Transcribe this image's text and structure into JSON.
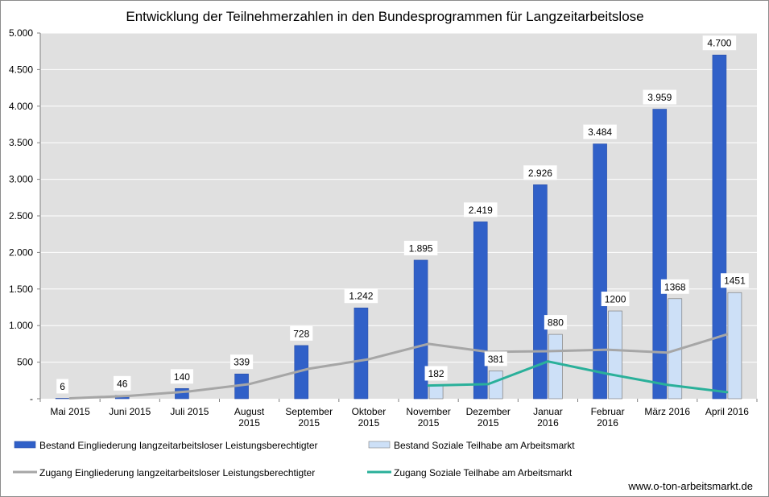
{
  "chart_data": {
    "type": "bar",
    "title": "Entwicklung der Teilnehmerzahlen in den Bundesprogrammen für Langzeitarbeitslose",
    "categories": [
      [
        "Mai 2015"
      ],
      [
        "Juni 2015"
      ],
      [
        "Juli 2015"
      ],
      [
        "August",
        "2015"
      ],
      [
        "September",
        "2015"
      ],
      [
        "Oktober",
        "2015"
      ],
      [
        "November",
        "2015"
      ],
      [
        "Dezember",
        "2015"
      ],
      [
        "Januar",
        "2016"
      ],
      [
        "Februar",
        "2016"
      ],
      [
        "März 2016"
      ],
      [
        "April 2016"
      ]
    ],
    "ylim": [
      0,
      5000
    ],
    "yticks": [
      0,
      500,
      1000,
      1500,
      2000,
      2500,
      3000,
      3500,
      4000,
      4500,
      5000
    ],
    "ytick_labels": [
      "-",
      "500",
      "1.000",
      "1.500",
      "2.000",
      "2.500",
      "3.000",
      "3.500",
      "4.000",
      "4.500",
      "5.000"
    ],
    "grid": true,
    "legend_position": "bottom",
    "series": [
      {
        "name": "Bestand Eingliederung langzeitarbeitsloser Leistungsberechtigter",
        "kind": "bar",
        "color": "#3060c8",
        "values": [
          6,
          46,
          140,
          339,
          728,
          1242,
          1895,
          2419,
          2926,
          3484,
          3959,
          4700
        ],
        "labels": [
          "6",
          "46",
          "140",
          "339",
          "728",
          "1.242",
          "1.895",
          "2.419",
          "2.926",
          "3.484",
          "3.959",
          "4.700"
        ]
      },
      {
        "name": "Bestand Soziale Teilhabe am Arbeitsmarkt",
        "kind": "bar",
        "color": "#cde0f7",
        "values": [
          null,
          null,
          null,
          null,
          null,
          null,
          182,
          381,
          880,
          1200,
          1368,
          1451
        ],
        "labels": [
          null,
          null,
          null,
          null,
          null,
          null,
          "182",
          "381",
          "880",
          "1200",
          "1368",
          "1451"
        ]
      },
      {
        "name": "Zugang Eingliederung langzeitarbeitsloser Leistungsberechtigter",
        "kind": "line",
        "color": "#a6a6a6",
        "values": [
          5,
          40,
          100,
          200,
          410,
          540,
          750,
          640,
          650,
          670,
          630,
          880
        ]
      },
      {
        "name": "Zugang Soziale Teilhabe am Arbeitsmarkt",
        "kind": "line",
        "color": "#2ab09a",
        "values": [
          null,
          null,
          null,
          null,
          null,
          null,
          180,
          200,
          510,
          340,
          190,
          90
        ]
      }
    ]
  },
  "footer": {
    "source": "www.o-ton-arbeitsmarkt.de"
  }
}
